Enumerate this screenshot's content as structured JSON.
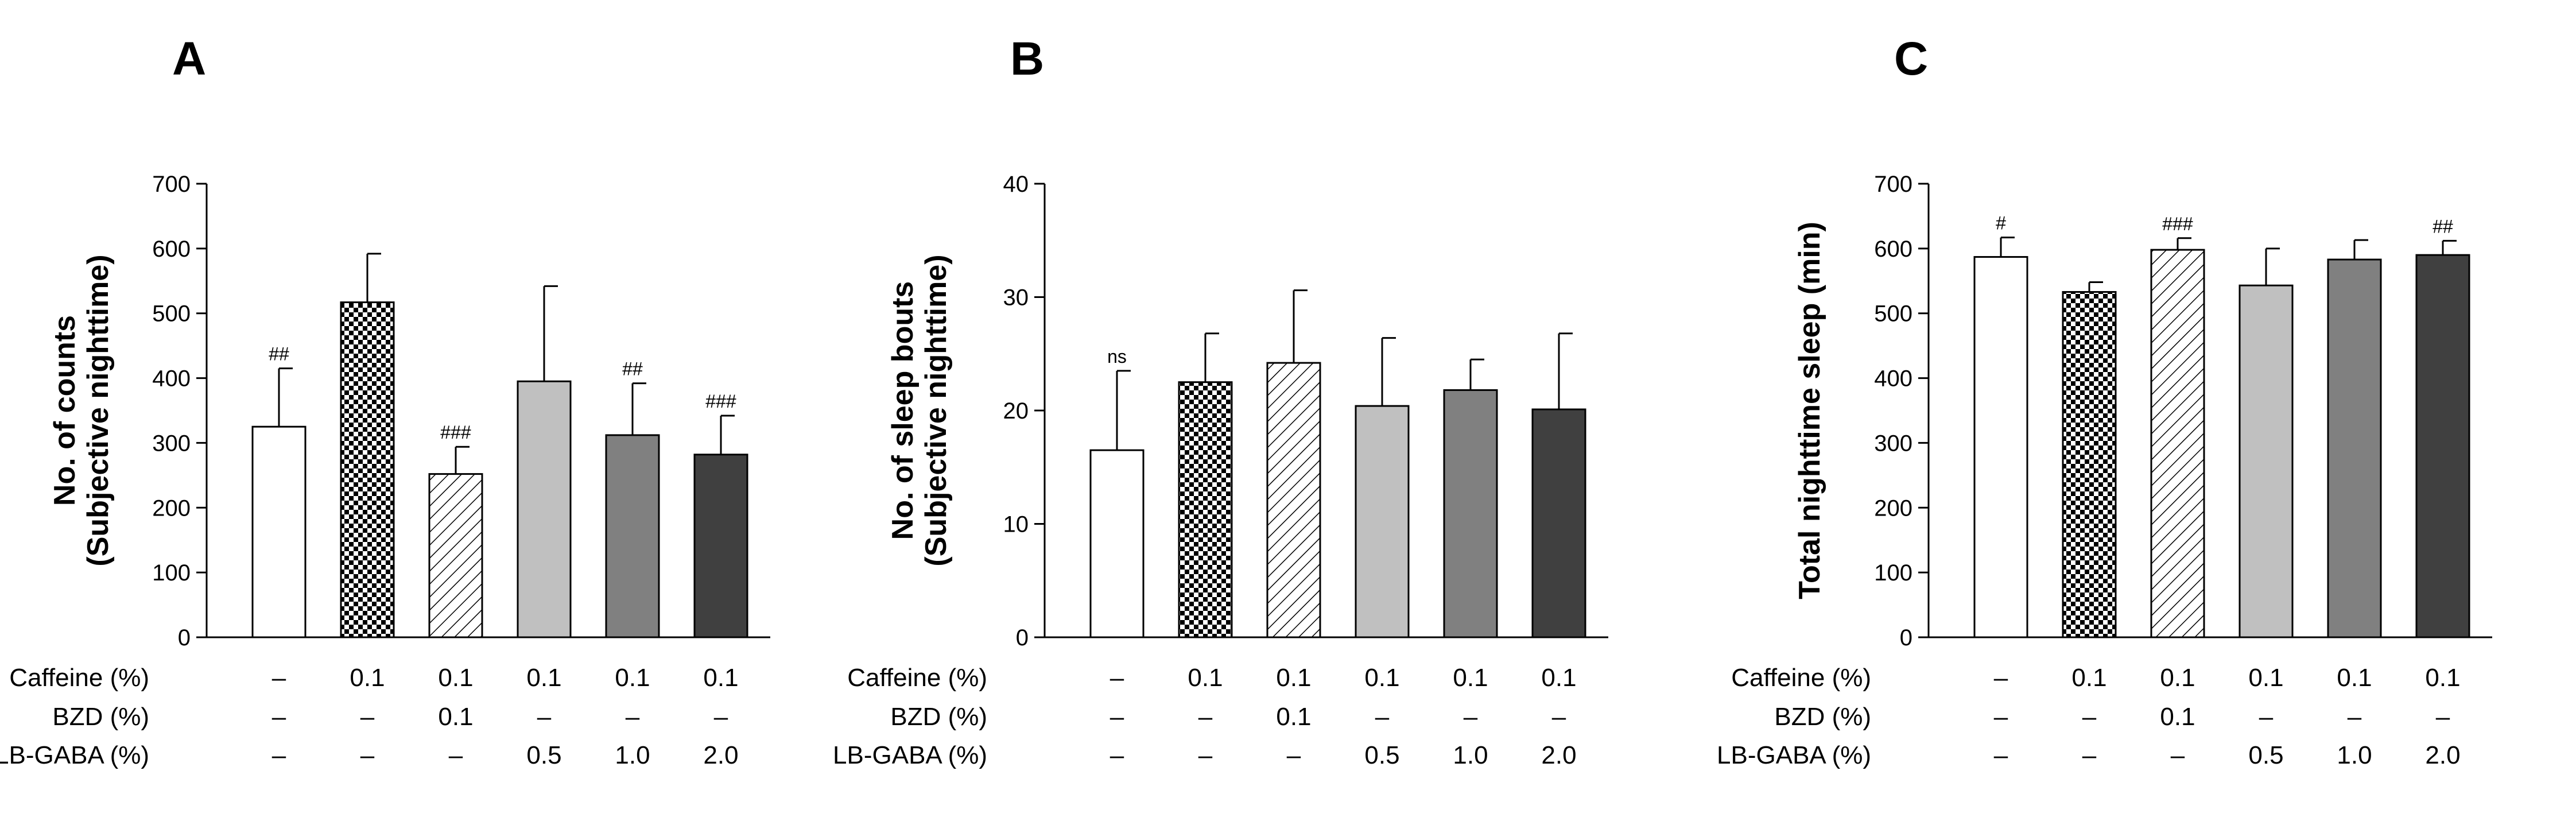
{
  "colors": {
    "axis": "#000000",
    "vehicle": "#ffffff",
    "caffeine": "checker",
    "bzd": "hatch",
    "gaba05": "#c0c0c0",
    "gaba10": "#808080",
    "gaba20": "#404040"
  },
  "chart_data": [
    {
      "type": "bar",
      "panel": "A",
      "ylabel": [
        "No. of counts",
        "(Subjective nighttime)"
      ],
      "ylim": [
        0,
        700
      ],
      "yticks": [
        0,
        100,
        200,
        300,
        400,
        500,
        600,
        700
      ],
      "values": [
        325,
        517,
        252,
        395,
        312,
        282
      ],
      "errors": [
        90,
        75,
        42,
        147,
        80,
        60
      ],
      "annotations": [
        "##",
        "",
        "###",
        "",
        "##",
        "###"
      ]
    },
    {
      "type": "bar",
      "panel": "B",
      "ylabel": [
        "No. of sleep bouts",
        "(Subjective nighttime)"
      ],
      "ylim": [
        0,
        40
      ],
      "yticks": [
        0,
        10,
        20,
        30,
        40
      ],
      "values": [
        16.5,
        22.5,
        24.2,
        20.4,
        21.8,
        20.1
      ],
      "errors": [
        7.0,
        4.3,
        6.4,
        6.0,
        2.7,
        6.7
      ],
      "annotations": [
        "ns",
        "",
        "",
        "",
        "",
        ""
      ]
    },
    {
      "type": "bar",
      "panel": "C",
      "ylabel": [
        "Total nighttime sleep (min)"
      ],
      "ylim": [
        0,
        700
      ],
      "yticks": [
        0,
        100,
        200,
        300,
        400,
        500,
        600,
        700
      ],
      "values": [
        587,
        533,
        598,
        543,
        583,
        590
      ],
      "errors": [
        30,
        15,
        18,
        57,
        30,
        22
      ],
      "annotations": [
        "#",
        "",
        "###",
        "",
        "",
        "##"
      ]
    }
  ],
  "treatments": {
    "rows": [
      {
        "label": "Caffeine (%)",
        "values": [
          "–",
          "0.1",
          "0.1",
          "0.1",
          "0.1",
          "0.1"
        ]
      },
      {
        "label": "BZD (%)",
        "values": [
          "–",
          "–",
          "0.1",
          "–",
          "–",
          "–"
        ]
      },
      {
        "label": "LB-GABA (%)",
        "values": [
          "–",
          "–",
          "–",
          "0.5",
          "1.0",
          "2.0"
        ]
      }
    ]
  }
}
